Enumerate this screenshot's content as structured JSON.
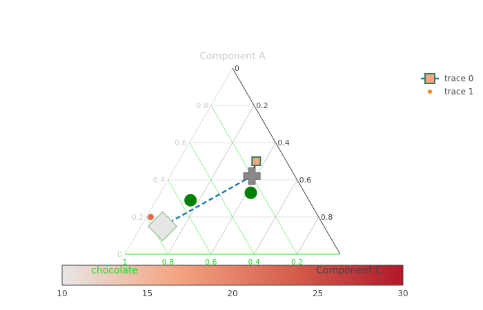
{
  "chart_data": {
    "type": "scatter",
    "subtype": "ternary",
    "axes": {
      "a": {
        "title": "Component A",
        "ticks": [
          0,
          0.2,
          0.4,
          0.6,
          0.8
        ],
        "tick_labels": [
          "0",
          "0.2",
          "0.4",
          "0.6",
          "0.8"
        ],
        "title_color": "#cccccc",
        "tick_color": "#cccccc",
        "grid_color": "#e0e0e0",
        "range": [
          0,
          0.8
        ]
      },
      "b": {
        "title": "chocolate",
        "ticks": [
          1,
          0.8,
          0.6,
          0.4,
          0.2
        ],
        "tick_labels": [
          "1",
          "0.8",
          "0.6",
          "0.4",
          "0.2"
        ],
        "title_color": "#22dd22",
        "tick_color": "#22dd22",
        "grid_color": "#99ee99",
        "range": [
          0.2,
          1
        ]
      },
      "c": {
        "title": "Component C",
        "ticks": [
          0,
          0.2,
          0.4,
          0.6,
          0.8
        ],
        "tick_labels": [
          "0",
          "0.2",
          "0.4",
          "0.6",
          "0.8"
        ],
        "title_color": "#444444",
        "tick_color": "#444444",
        "grid_color": "#cccccc",
        "range": [
          0,
          0.8
        ]
      }
    },
    "series": [
      {
        "name": "trace 0",
        "mode": "lines+markers",
        "line_color": "#1f77b4",
        "line_dash": "dash",
        "points": [
          {
            "a": 0.15,
            "b": 0.75,
            "c": 0.1,
            "symbol": "diamond",
            "color": "#e6e6e6",
            "outline": "#99cc99",
            "size": 26
          },
          {
            "a": 0.42,
            "b": 0.2,
            "c": 0.38,
            "symbol": "cross",
            "color": "#888888",
            "outline": "#666666",
            "size": 24
          },
          {
            "a": 0.5,
            "b": 0.14,
            "c": 0.36,
            "symbol": "square",
            "color": "#f4a582",
            "outline": "#3d7a5c",
            "size": 12
          }
        ],
        "segment_colors": [
          "#1f77b4",
          "#b2182b"
        ]
      },
      {
        "name": "trace 1",
        "mode": "markers",
        "points": [
          {
            "a": 0.2,
            "b": 0.78,
            "c": 0.02,
            "color": "#e8684e",
            "size": 9
          },
          {
            "a": 0.29,
            "b": 0.55,
            "c": 0.16,
            "color": "#008000",
            "size": 18
          },
          {
            "a": 0.33,
            "b": 0.25,
            "c": 0.42,
            "color": "#008000",
            "size": 18
          }
        ]
      }
    ],
    "legend": {
      "position": "top-right",
      "items": [
        {
          "label": "trace 0",
          "marker": "square",
          "fill": "#f4a582",
          "outline": "#3d7a5c",
          "line": "#1f77b4"
        },
        {
          "label": "trace 1",
          "marker": "circle",
          "fill": "#ff7f0e"
        }
      ]
    },
    "colorbar": {
      "orientation": "horizontal",
      "min": 10,
      "max": 30,
      "ticks": [
        10,
        15,
        20,
        25,
        30
      ],
      "colorscale": [
        "#e6e6e6",
        "#f4a582",
        "#d6604d",
        "#b2182b"
      ]
    }
  }
}
